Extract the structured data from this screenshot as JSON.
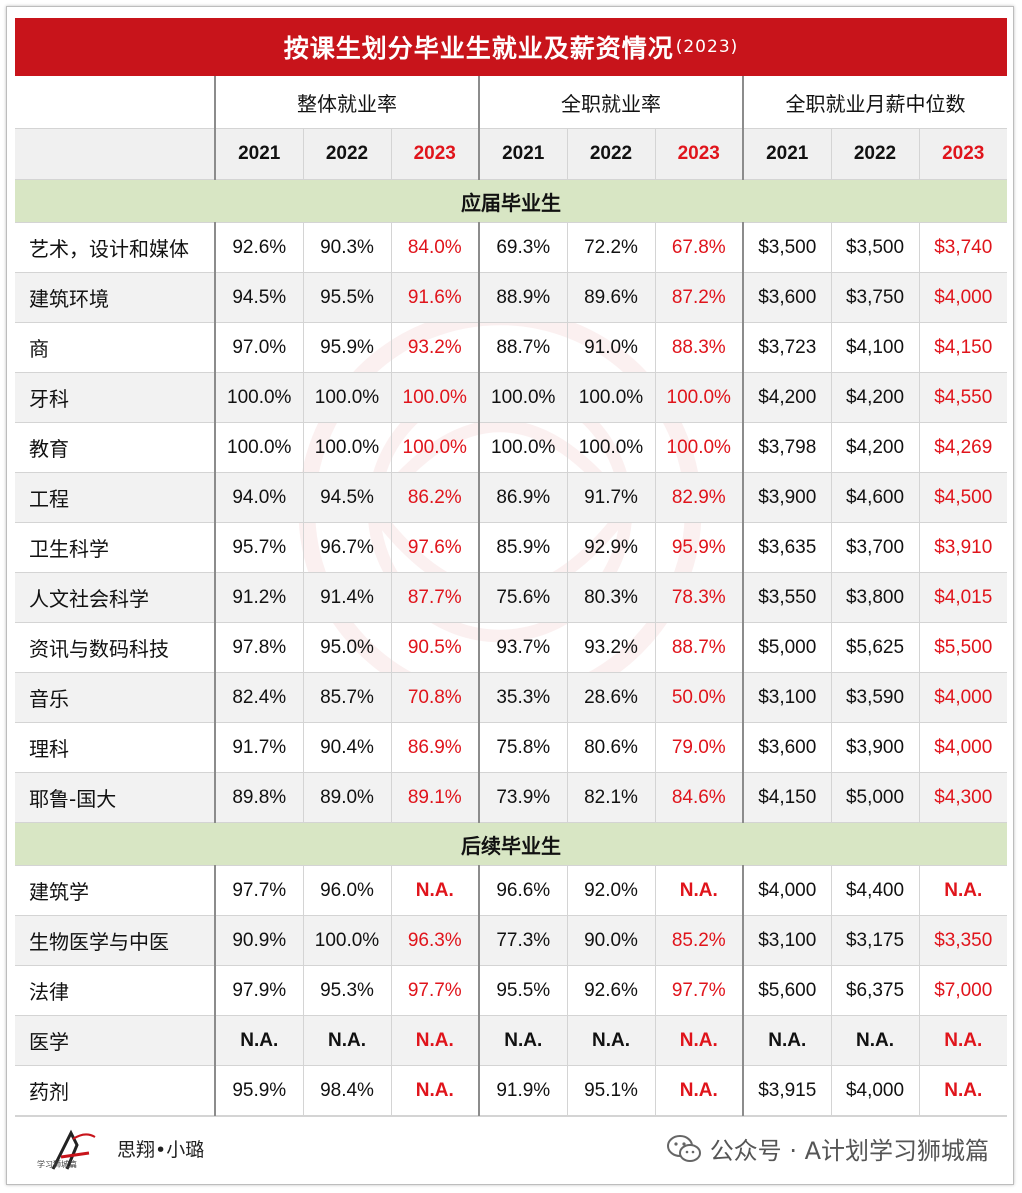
{
  "title": "按课生划分毕业生就业及薪资情况",
  "title_year": "(2023)",
  "groups": [
    "整体就业率",
    "全职就业率",
    "全职就业月薪中位数"
  ],
  "years": [
    "2021",
    "2022",
    "2023"
  ],
  "sections": [
    {
      "label": "应届毕业生",
      "rows": [
        {
          "name": "艺术，设计和媒体",
          "values": [
            "92.6%",
            "90.3%",
            "84.0%",
            "69.3%",
            "72.2%",
            "67.8%",
            "$3,500",
            "$3,500",
            "$3,740"
          ]
        },
        {
          "name": "建筑环境",
          "values": [
            "94.5%",
            "95.5%",
            "91.6%",
            "88.9%",
            "89.6%",
            "87.2%",
            "$3,600",
            "$3,750",
            "$4,000"
          ]
        },
        {
          "name": "商",
          "values": [
            "97.0%",
            "95.9%",
            "93.2%",
            "88.7%",
            "91.0%",
            "88.3%",
            "$3,723",
            "$4,100",
            "$4,150"
          ]
        },
        {
          "name": "牙科",
          "values": [
            "100.0%",
            "100.0%",
            "100.0%",
            "100.0%",
            "100.0%",
            "100.0%",
            "$4,200",
            "$4,200",
            "$4,550"
          ]
        },
        {
          "name": "教育",
          "values": [
            "100.0%",
            "100.0%",
            "100.0%",
            "100.0%",
            "100.0%",
            "100.0%",
            "$3,798",
            "$4,200",
            "$4,269"
          ]
        },
        {
          "name": "工程",
          "values": [
            "94.0%",
            "94.5%",
            "86.2%",
            "86.9%",
            "91.7%",
            "82.9%",
            "$3,900",
            "$4,600",
            "$4,500"
          ]
        },
        {
          "name": "卫生科学",
          "values": [
            "95.7%",
            "96.7%",
            "97.6%",
            "85.9%",
            "92.9%",
            "95.9%",
            "$3,635",
            "$3,700",
            "$3,910"
          ]
        },
        {
          "name": "人文社会科学",
          "values": [
            "91.2%",
            "91.4%",
            "87.7%",
            "75.6%",
            "80.3%",
            "78.3%",
            "$3,550",
            "$3,800",
            "$4,015"
          ]
        },
        {
          "name": "资讯与数码科技",
          "values": [
            "97.8%",
            "95.0%",
            "90.5%",
            "93.7%",
            "93.2%",
            "88.7%",
            "$5,000",
            "$5,625",
            "$5,500"
          ]
        },
        {
          "name": "音乐",
          "values": [
            "82.4%",
            "85.7%",
            "70.8%",
            "35.3%",
            "28.6%",
            "50.0%",
            "$3,100",
            "$3,590",
            "$4,000"
          ]
        },
        {
          "name": "理科",
          "values": [
            "91.7%",
            "90.4%",
            "86.9%",
            "75.8%",
            "80.6%",
            "79.0%",
            "$3,600",
            "$3,900",
            "$4,000"
          ]
        },
        {
          "name": "耶鲁-国大",
          "values": [
            "89.8%",
            "89.0%",
            "89.1%",
            "73.9%",
            "82.1%",
            "84.6%",
            "$4,150",
            "$5,000",
            "$4,300"
          ]
        }
      ]
    },
    {
      "label": "后续毕业生",
      "rows": [
        {
          "name": "建筑学",
          "values": [
            "97.7%",
            "96.0%",
            "N.A.",
            "96.6%",
            "92.0%",
            "N.A.",
            "$4,000",
            "$4,400",
            "N.A."
          ]
        },
        {
          "name": "生物医学与中医",
          "values": [
            "90.9%",
            "100.0%",
            "96.3%",
            "77.3%",
            "90.0%",
            "85.2%",
            "$3,100",
            "$3,175",
            "$3,350"
          ]
        },
        {
          "name": "法律",
          "values": [
            "97.9%",
            "95.3%",
            "97.7%",
            "95.5%",
            "92.6%",
            "97.7%",
            "$5,600",
            "$6,375",
            "$7,000"
          ]
        },
        {
          "name": "医学",
          "values": [
            "N.A.",
            "N.A.",
            "N.A.",
            "N.A.",
            "N.A.",
            "N.A.",
            "N.A.",
            "N.A.",
            "N.A."
          ]
        },
        {
          "name": "药剂",
          "values": [
            "95.9%",
            "98.4%",
            "N.A.",
            "91.9%",
            "95.1%",
            "N.A.",
            "$3,915",
            "$4,000",
            "N.A."
          ]
        }
      ]
    }
  ],
  "footer": {
    "logo_caption": "学习狮城篇",
    "author": "思翔•小璐",
    "wechat": "公众号 · A计划学习狮城篇"
  },
  "colors": {
    "title_bg": "#c8141b",
    "highlight": "#e0141b",
    "section_bg": "#d8e6c4",
    "alt_row_bg": "#f2f2f2"
  }
}
